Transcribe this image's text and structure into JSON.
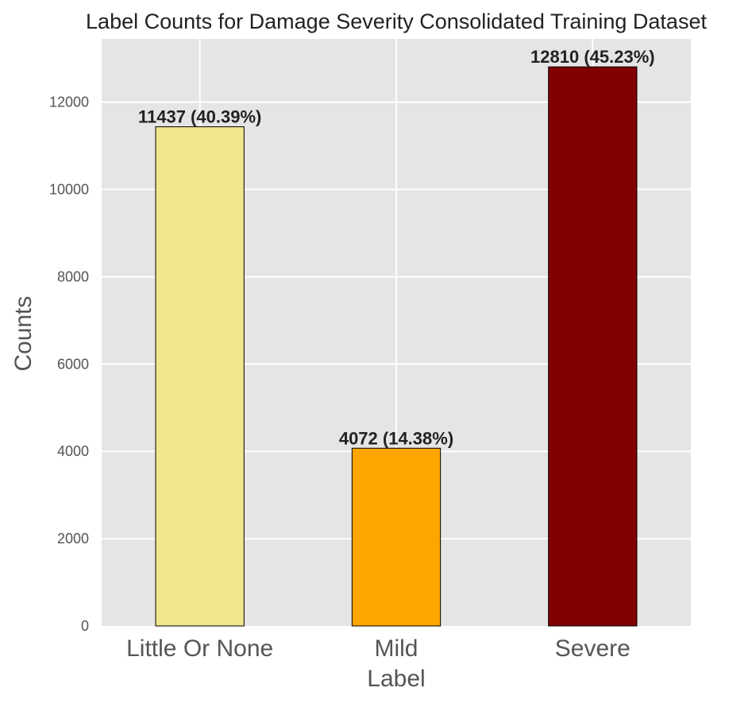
{
  "chart_data": {
    "type": "bar",
    "title": "Label Counts for Damage Severity Consolidated Training Dataset",
    "xlabel": "Label",
    "ylabel": "Counts",
    "categories": [
      "Little Or None",
      "Mild",
      "Severe"
    ],
    "values": [
      11437,
      4072,
      12810
    ],
    "bar_labels": [
      "11437 (40.39%)",
      "4072 (14.38%)",
      "12810 (45.23%)"
    ],
    "colors": [
      "#f0e68c",
      "#ffa500",
      "#800000"
    ],
    "edge_color": "#000000",
    "background": "#e5e5e5",
    "grid": true,
    "ylim": [
      0,
      13450
    ],
    "yticks": [
      0,
      2000,
      4000,
      6000,
      8000,
      10000,
      12000
    ],
    "ytick_labels": [
      "0",
      "2000",
      "4000",
      "6000",
      "8000",
      "10000",
      "12000"
    ]
  }
}
